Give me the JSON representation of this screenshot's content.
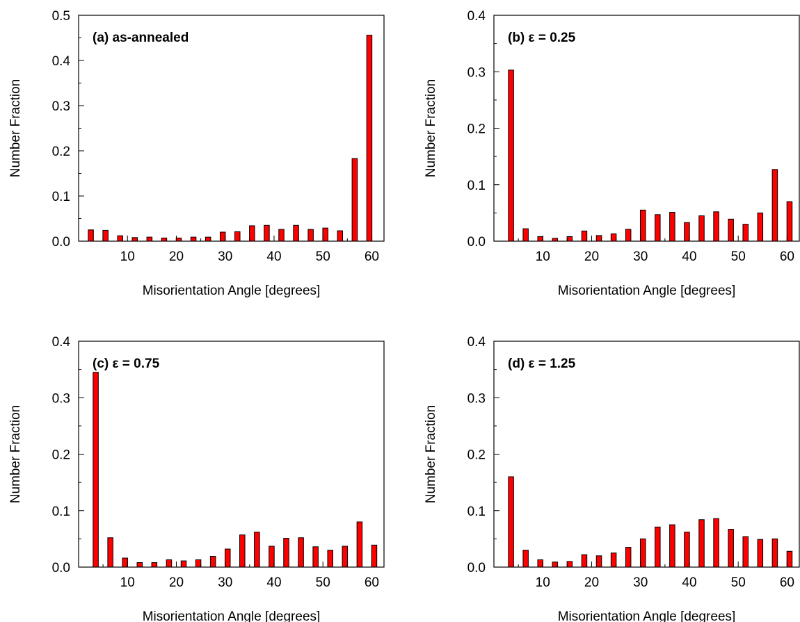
{
  "chart_data": [
    {
      "type": "bar",
      "annotation": "(a) as-annealed",
      "xlabel": "Misorientation Angle [degrees]",
      "ylabel": "Number Fraction",
      "xlim": [
        0,
        62.5
      ],
      "ylim": [
        0,
        0.5
      ],
      "xticks": [
        10,
        20,
        30,
        40,
        50,
        60
      ],
      "yticks": [
        "0.0",
        "0.1",
        "0.2",
        "0.3",
        "0.4",
        "0.5"
      ],
      "x": [
        2.5,
        5.5,
        8.5,
        11.5,
        14.5,
        17.5,
        20.5,
        23.5,
        26.5,
        29.5,
        32.5,
        35.5,
        38.5,
        41.5,
        44.5,
        47.5,
        50.5,
        53.5,
        56.5,
        59.5
      ],
      "values": [
        0.025,
        0.024,
        0.012,
        0.008,
        0.009,
        0.007,
        0.007,
        0.009,
        0.009,
        0.02,
        0.021,
        0.034,
        0.035,
        0.026,
        0.035,
        0.026,
        0.029,
        0.023,
        0.183,
        0.456
      ],
      "bar_color": "#ff0000"
    },
    {
      "type": "bar",
      "annotation": "(b) ε = 0.25",
      "xlabel": "Misorientation Angle [degrees]",
      "ylabel": "Number Fraction",
      "xlim": [
        0,
        62.5
      ],
      "ylim": [
        0,
        0.4
      ],
      "xticks": [
        10,
        20,
        30,
        40,
        50,
        60
      ],
      "yticks": [
        "0.0",
        "0.1",
        "0.2",
        "0.3",
        "0.4"
      ],
      "x": [
        3.5,
        6.5,
        9.5,
        12.5,
        15.5,
        18.5,
        21.5,
        24.5,
        27.5,
        30.5,
        33.5,
        36.5,
        39.5,
        42.5,
        45.5,
        48.5,
        51.5,
        54.5,
        57.5,
        60.5
      ],
      "values": [
        0.303,
        0.022,
        0.008,
        0.005,
        0.008,
        0.018,
        0.01,
        0.013,
        0.021,
        0.055,
        0.047,
        0.051,
        0.033,
        0.045,
        0.052,
        0.039,
        0.03,
        0.05,
        0.127,
        0.07
      ],
      "bar_color": "#ff0000"
    },
    {
      "type": "bar",
      "annotation": "(c) ε = 0.75",
      "xlabel": "Misorientation Angle [degrees]",
      "ylabel": "Number Fraction",
      "xlim": [
        0,
        62.5
      ],
      "ylim": [
        0,
        0.4
      ],
      "xticks": [
        10,
        20,
        30,
        40,
        50,
        60
      ],
      "yticks": [
        "0.0",
        "0.1",
        "0.2",
        "0.3",
        "0.4"
      ],
      "x": [
        3.5,
        6.5,
        9.5,
        12.5,
        15.5,
        18.5,
        21.5,
        24.5,
        27.5,
        30.5,
        33.5,
        36.5,
        39.5,
        42.5,
        45.5,
        48.5,
        51.5,
        54.5,
        57.5,
        60.5
      ],
      "values": [
        0.345,
        0.052,
        0.016,
        0.008,
        0.008,
        0.013,
        0.011,
        0.013,
        0.019,
        0.032,
        0.057,
        0.062,
        0.037,
        0.051,
        0.052,
        0.036,
        0.03,
        0.037,
        0.08,
        0.039
      ],
      "bar_color": "#ff0000"
    },
    {
      "type": "bar",
      "annotation": "(d) ε = 1.25",
      "xlabel": "Misorientation Angle [degrees]",
      "ylabel": "Number Fraction",
      "xlim": [
        0,
        62.5
      ],
      "ylim": [
        0,
        0.4
      ],
      "xticks": [
        10,
        20,
        30,
        40,
        50,
        60
      ],
      "yticks": [
        "0.0",
        "0.1",
        "0.2",
        "0.3",
        "0.4"
      ],
      "x": [
        3.5,
        6.5,
        9.5,
        12.5,
        15.5,
        18.5,
        21.5,
        24.5,
        27.5,
        30.5,
        33.5,
        36.5,
        39.5,
        42.5,
        45.5,
        48.5,
        51.5,
        54.5,
        57.5,
        60.5
      ],
      "values": [
        0.16,
        0.03,
        0.013,
        0.009,
        0.01,
        0.022,
        0.02,
        0.025,
        0.035,
        0.05,
        0.071,
        0.075,
        0.062,
        0.084,
        0.086,
        0.067,
        0.054,
        0.049,
        0.05,
        0.028
      ],
      "bar_color": "#ff0000"
    }
  ]
}
